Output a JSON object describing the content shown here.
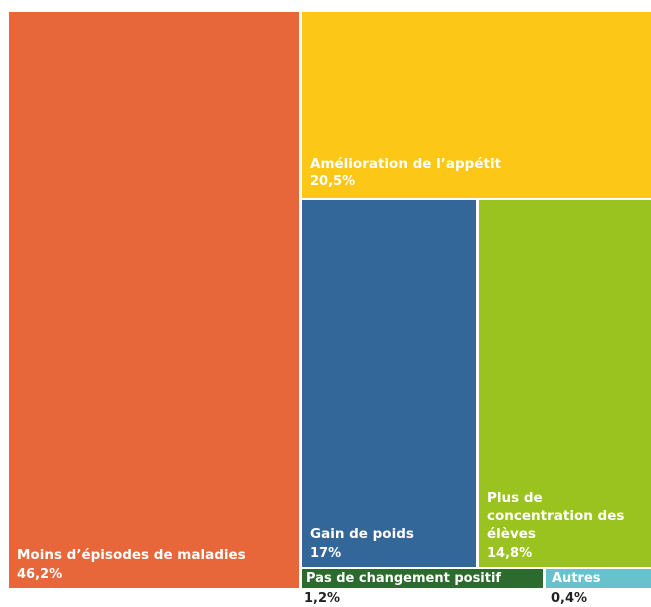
{
  "chart_data": {
    "type": "treemap",
    "title": "",
    "items": [
      {
        "label": "Moins d’épisodes de maladies",
        "value": 46.2,
        "value_text": "46,2%",
        "color": "#e8673a"
      },
      {
        "label": "Amélioration de l’appétit",
        "value": 20.5,
        "value_text": "20,5%",
        "color": "#fdc717"
      },
      {
        "label": "Gain de poids",
        "value": 17,
        "value_text": "17%",
        "color": "#336799"
      },
      {
        "label": "Plus de concentration des élèves",
        "value": 14.8,
        "value_text": "14,8%",
        "color": "#9bc31f"
      },
      {
        "label": "Pas de changement positif",
        "value": 1.2,
        "value_text": "1,2%",
        "color": "#2d6a2e"
      },
      {
        "label": "Autres",
        "value": 0.4,
        "value_text": "0,4%",
        "color": "#67c2cd"
      }
    ]
  }
}
